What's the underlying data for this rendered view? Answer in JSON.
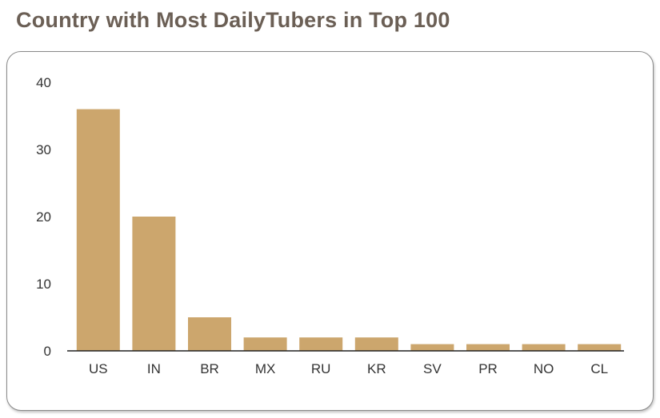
{
  "title": "Country with Most DailyTubers in Top 100",
  "chart_data": {
    "type": "bar",
    "categories": [
      "US",
      "IN",
      "BR",
      "MX",
      "RU",
      "KR",
      "SV",
      "PR",
      "NO",
      "CL"
    ],
    "values": [
      36,
      20,
      5,
      2,
      2,
      2,
      1,
      1,
      1,
      1
    ],
    "yticks": [
      0,
      10,
      20,
      30,
      40
    ],
    "ylim": [
      0,
      40
    ],
    "grid": false,
    "legend": "none",
    "bar_color": "#cca66d"
  }
}
